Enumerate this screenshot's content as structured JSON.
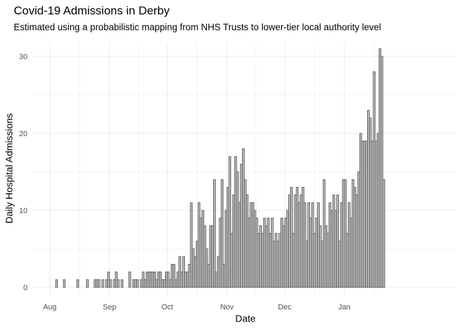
{
  "chart_data": {
    "type": "bar",
    "title": "Covid-19 Admissions in Derby",
    "subtitle": "Estimated using a probabilistic mapping from NHS Trusts to lower-tier local authority level",
    "xlabel": "Date",
    "ylabel": "Daily Hospital Admissions",
    "x_start": "2020-08-01",
    "x_ticks": [
      {
        "label": "Aug",
        "date": "2020-08-01"
      },
      {
        "label": "Sep",
        "date": "2020-09-01"
      },
      {
        "label": "Oct",
        "date": "2020-10-01"
      },
      {
        "label": "Nov",
        "date": "2020-11-01"
      },
      {
        "label": "Dec",
        "date": "2020-12-01"
      },
      {
        "label": "Jan",
        "date": "2021-01-01"
      }
    ],
    "y_ticks": [
      0,
      10,
      20,
      30
    ],
    "ylim": [
      0,
      32
    ],
    "grid": true,
    "legend": "none",
    "colors": {
      "bar_fill": "#bebebe",
      "bar_stroke": "#595959",
      "grid": "#ebebeb"
    },
    "values": [
      0,
      0,
      0,
      1,
      0,
      0,
      0,
      1,
      0,
      0,
      0,
      0,
      0,
      0,
      1,
      0,
      0,
      0,
      0,
      1,
      0,
      0,
      0,
      1,
      1,
      1,
      0,
      1,
      0,
      1,
      2,
      1,
      0,
      1,
      2,
      1,
      0,
      1,
      0,
      0,
      0,
      2,
      0,
      1,
      1,
      1,
      0,
      1,
      2,
      1,
      2,
      2,
      2,
      2,
      2,
      1,
      2,
      2,
      1,
      1,
      2,
      2,
      1,
      3,
      3,
      1,
      2,
      4,
      2,
      4,
      2,
      2,
      3,
      11,
      5,
      4,
      6,
      11,
      9,
      10,
      8,
      5,
      3,
      8,
      8,
      14,
      2,
      4,
      9,
      14,
      3,
      10,
      13,
      17,
      7,
      12,
      17,
      15,
      11,
      16,
      18,
      14,
      12,
      9,
      11,
      11,
      10,
      9,
      7,
      8,
      7,
      9,
      8,
      9,
      7,
      9,
      6,
      7,
      6,
      7,
      9,
      8,
      9,
      10,
      12,
      13,
      7,
      12,
      13,
      11,
      12,
      13,
      11,
      6,
      11,
      9,
      11,
      7,
      9,
      11,
      8,
      6,
      14,
      8,
      7,
      11,
      10,
      12,
      10,
      12,
      6,
      11,
      14,
      14,
      7,
      11,
      9,
      14,
      13,
      12,
      15,
      20,
      19,
      19,
      19,
      23,
      22,
      19,
      28,
      19,
      20,
      31,
      30,
      14
    ]
  }
}
